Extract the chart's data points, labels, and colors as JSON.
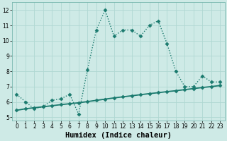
{
  "x": [
    0,
    1,
    2,
    3,
    4,
    5,
    6,
    7,
    8,
    9,
    10,
    11,
    12,
    13,
    14,
    15,
    16,
    17,
    18,
    19,
    20,
    21,
    22,
    23
  ],
  "y_dotted": [
    6.5,
    6.0,
    5.55,
    5.7,
    6.1,
    6.2,
    6.5,
    5.2,
    8.1,
    10.7,
    12.0,
    10.3,
    10.7,
    10.7,
    10.3,
    11.0,
    11.3,
    9.8,
    8.0,
    7.0,
    7.0,
    7.7,
    7.3,
    7.3
  ],
  "y_solid": [
    5.45,
    5.55,
    5.62,
    5.68,
    5.75,
    5.82,
    5.88,
    5.94,
    6.02,
    6.1,
    6.18,
    6.26,
    6.33,
    6.4,
    6.47,
    6.54,
    6.6,
    6.67,
    6.73,
    6.8,
    6.87,
    6.94,
    7.0,
    7.07
  ],
  "color_line": "#1a7a6e",
  "bg_color": "#ceeae6",
  "grid_color": "#b0d8d2",
  "xlabel": "Humidex (Indice chaleur)",
  "xlim": [
    -0.5,
    23.5
  ],
  "ylim": [
    4.8,
    12.5
  ],
  "yticks": [
    5,
    6,
    7,
    8,
    9,
    10,
    11,
    12
  ],
  "xticks": [
    0,
    1,
    2,
    3,
    4,
    5,
    6,
    7,
    8,
    9,
    10,
    11,
    12,
    13,
    14,
    15,
    16,
    17,
    18,
    19,
    20,
    21,
    22,
    23
  ],
  "tick_fontsize": 5.5,
  "xlabel_fontsize": 7.5,
  "linewidth_dotted": 1.0,
  "linewidth_solid": 1.3,
  "marker_size": 2.5
}
